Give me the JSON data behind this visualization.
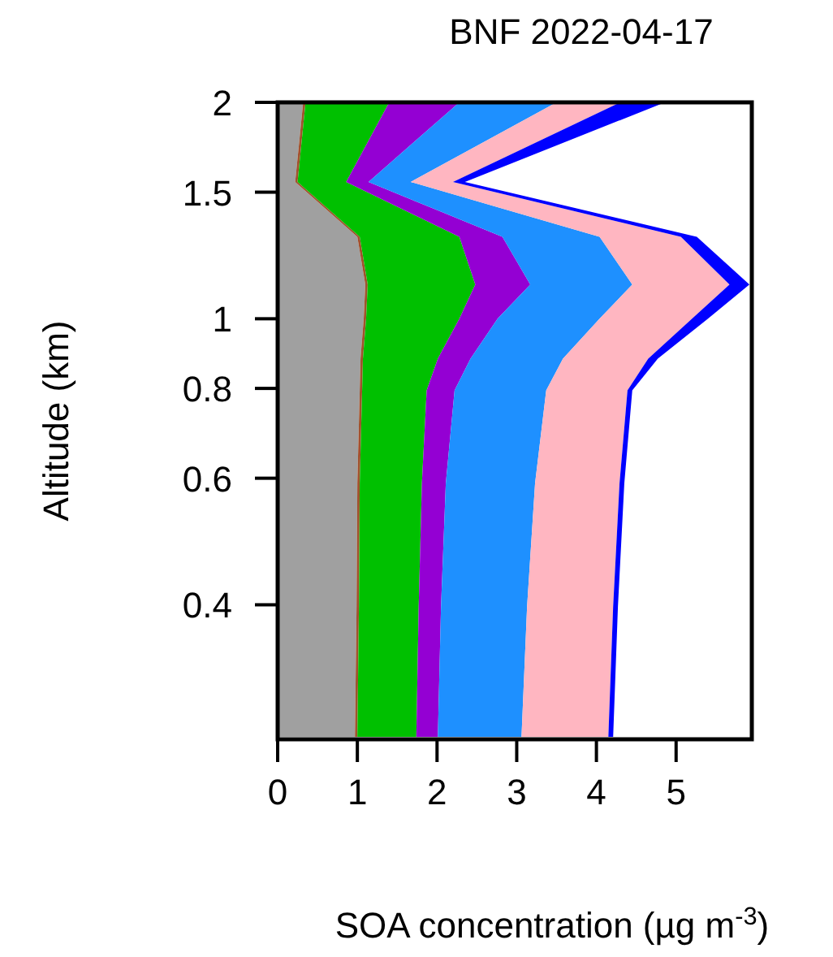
{
  "chart_data": {
    "type": "area",
    "stacked": true,
    "orientation": "horizontal",
    "title": "BNF 2022-04-17",
    "xlabel": "SOA concentration (µg m$^{-3}$)",
    "ylabel": "Altitude (km)",
    "log": "y",
    "x": [
      2,
      1.55,
      1.3,
      1.116,
      1.0,
      0.88,
      0.795,
      0.59,
      0.398,
      0.262
    ],
    "xlim": [
      0,
      5.95
    ],
    "xticks": [
      0,
      1,
      2,
      3,
      4,
      5
    ],
    "ylim": [
      0.26,
      2
    ],
    "yticks": [
      0.4,
      0.6,
      0.8,
      1,
      1.5,
      2
    ],
    "series": [
      {
        "color": "#a0a0a0",
        "values": [
          0.32,
          0.22,
          1.0,
          1.1,
          1.08,
          1.04,
          1.03,
          1.0,
          0.99,
          0.97
        ]
      },
      {
        "color": "#a0522d",
        "values": [
          0.03,
          0.03,
          0.03,
          0.03,
          0.03,
          0.03,
          0.03,
          0.03,
          0.03,
          0.03
        ]
      },
      {
        "color": "#00c000",
        "values": [
          1.05,
          0.61,
          1.25,
          1.35,
          1.17,
          0.94,
          0.81,
          0.78,
          0.75,
          0.74
        ]
      },
      {
        "color": "#9400d3",
        "values": [
          0.88,
          0.28,
          0.54,
          0.69,
          0.48,
          0.41,
          0.35,
          0.3,
          0.28,
          0.27
        ]
      },
      {
        "color": "#1e90ff",
        "values": [
          1.22,
          0.53,
          1.22,
          1.28,
          1.28,
          1.16,
          1.15,
          1.12,
          1.08,
          1.05
        ]
      },
      {
        "color": "#ffb6c1",
        "values": [
          0.8,
          0.53,
          1.02,
          1.22,
          1.16,
          1.07,
          1.02,
          1.06,
          1.08,
          1.09
        ]
      },
      {
        "color": "#0000ff",
        "values": [
          0.56,
          0.15,
          0.2,
          0.25,
          0.2,
          0.12,
          0.06,
          0.06,
          0.06,
          0.06
        ]
      }
    ]
  }
}
